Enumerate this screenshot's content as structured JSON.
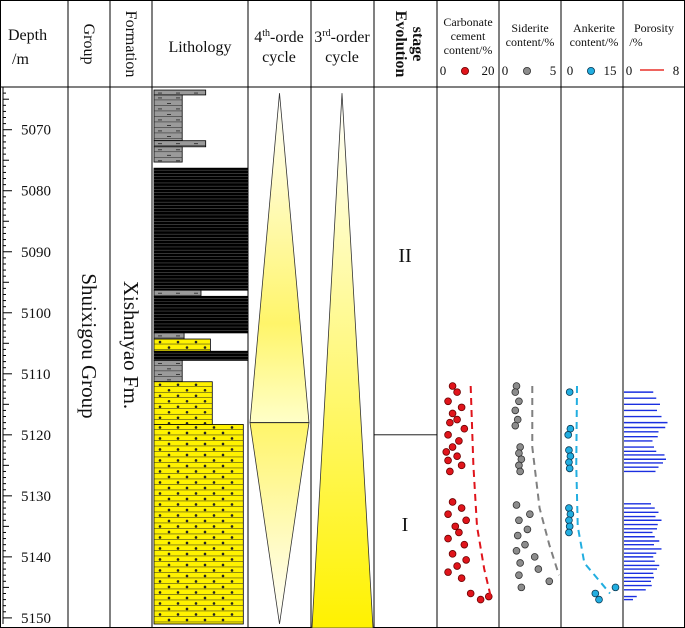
{
  "headers": {
    "depth": [
      "Depth",
      "/m"
    ],
    "group": "Group",
    "formation": "Formation",
    "lithology": "Lithology",
    "cycle4": {
      "sup": "th",
      "line1": "4",
      "line1b": "-orde",
      "line2": "cycle"
    },
    "cycle3": {
      "sup": "rd",
      "line1": "3",
      "line1b": "-order",
      "line2": "cycle"
    },
    "evolution": [
      "Evolution",
      "stage"
    ],
    "carbonate": [
      "Carbonate",
      "cement",
      "content/%"
    ],
    "siderite": [
      "Siderite",
      "content/%"
    ],
    "ankerite": [
      "Ankerite",
      "content/%"
    ],
    "porosity": [
      "Porosity",
      "/%"
    ]
  },
  "scales": {
    "carbonate": {
      "min": "0",
      "max": "20",
      "color": "#e0141b"
    },
    "siderite": {
      "min": "0",
      "max": "5",
      "color": "#8c8c8c"
    },
    "ankerite": {
      "min": "0",
      "max": "15",
      "color": "#22aee0"
    },
    "porosity": {
      "min": "0",
      "max": "8",
      "color": "#e8302a"
    }
  },
  "group_name": "Shuixigou Group",
  "formation_name": "Xishanyao Fm.",
  "stages": {
    "upper": "II",
    "lower": "I",
    "boundary_depth": 5120
  },
  "depth_ticks": [
    5070,
    5080,
    5090,
    5100,
    5110,
    5120,
    5130,
    5140,
    5150
  ],
  "colors": {
    "sandstone": "#fff200",
    "mudstone": "#000000",
    "siltstone": "#9a9a9a",
    "porosity_bar": "#1a2fe0",
    "cycle_fill": "#fffb7a"
  },
  "chart_data": {
    "type": "well-log",
    "depth_range": [
      5063,
      5151
    ],
    "lithology": [
      {
        "top": 5063.5,
        "bottom": 5064.3,
        "rock": "siltstone",
        "width": 0.55
      },
      {
        "top": 5064.3,
        "bottom": 5071.8,
        "rock": "siltstone",
        "width": 0.3
      },
      {
        "top": 5071.8,
        "bottom": 5072.8,
        "rock": "siltstone",
        "width": 0.55
      },
      {
        "top": 5072.8,
        "bottom": 5075.3,
        "rock": "siltstone",
        "width": 0.3
      },
      {
        "top": 5076.3,
        "bottom": 5096.3,
        "rock": "mudstone",
        "width": 1.0
      },
      {
        "top": 5096.3,
        "bottom": 5097.3,
        "rock": "siltstone",
        "width": 0.5
      },
      {
        "top": 5097.3,
        "bottom": 5103.3,
        "rock": "mudstone",
        "width": 1.0
      },
      {
        "top": 5103.3,
        "bottom": 5104.3,
        "rock": "siltstone",
        "width": 0.32
      },
      {
        "top": 5104.3,
        "bottom": 5106.3,
        "rock": "sandstone",
        "width": 0.6
      },
      {
        "top": 5106.3,
        "bottom": 5107.8,
        "rock": "mudstone",
        "width": 1.0
      },
      {
        "top": 5107.8,
        "bottom": 5111.3,
        "rock": "siltstone",
        "width": 0.3
      },
      {
        "top": 5111.3,
        "bottom": 5118.3,
        "rock": "sandstone",
        "width": 0.62
      },
      {
        "top": 5118.3,
        "bottom": 5151.0,
        "rock": "sandstone",
        "width": 0.95
      }
    ],
    "cycle4_pinch_depths": [
      5064,
      5118,
      5151
    ],
    "cycle3_pinch_depths": [
      5064
    ],
    "carbonate": [
      [
        5112,
        1.5
      ],
      [
        5113,
        2
      ],
      [
        5114.5,
        1
      ],
      [
        5115.5,
        2.5
      ],
      [
        5116.5,
        1.5
      ],
      [
        5117.5,
        2
      ],
      [
        5118,
        1.2
      ],
      [
        5119,
        2.8
      ],
      [
        5120,
        1
      ],
      [
        5121,
        2.2
      ],
      [
        5122,
        1.5
      ],
      [
        5122.8,
        0.8
      ],
      [
        5123.5,
        2
      ],
      [
        5124.2,
        1
      ],
      [
        5125,
        2.5
      ],
      [
        5126,
        1.2
      ],
      [
        5131,
        1.5
      ],
      [
        5132,
        2.5
      ],
      [
        5133,
        1
      ],
      [
        5134,
        3
      ],
      [
        5135,
        1.8
      ],
      [
        5136,
        2.2
      ],
      [
        5137,
        1
      ],
      [
        5138,
        2.8
      ],
      [
        5139.5,
        1.5
      ],
      [
        5140.5,
        3
      ],
      [
        5141.5,
        2
      ],
      [
        5142.5,
        1
      ],
      [
        5143.5,
        2.5
      ],
      [
        5146,
        3.5
      ],
      [
        5147,
        4.6
      ],
      [
        5146.5,
        5.5
      ]
    ],
    "carbonate_trend": [
      [
        5112,
        3.5
      ],
      [
        5125,
        3.8
      ],
      [
        5135,
        4.2
      ],
      [
        5142,
        5
      ],
      [
        5147,
        5.8
      ]
    ],
    "siderite": [
      [
        5112,
        0.7
      ],
      [
        5113,
        0.6
      ],
      [
        5114.5,
        0.9
      ],
      [
        5116,
        0.6
      ],
      [
        5117.5,
        0.8
      ],
      [
        5118.5,
        0.6
      ],
      [
        5122,
        1
      ],
      [
        5123,
        0.9
      ],
      [
        5124,
        1.1
      ],
      [
        5125,
        0.9
      ],
      [
        5126,
        1
      ],
      [
        5131.5,
        0.7
      ],
      [
        5133,
        1.8
      ],
      [
        5134,
        0.9
      ],
      [
        5135.5,
        1.6
      ],
      [
        5136.5,
        0.8
      ],
      [
        5138,
        1.4
      ],
      [
        5139,
        0.7
      ],
      [
        5140,
        2.2
      ],
      [
        5141,
        1
      ],
      [
        5142,
        2.5
      ],
      [
        5143,
        0.9
      ],
      [
        5144,
        3.4
      ],
      [
        5145,
        1.1
      ]
    ],
    "siderite_trend": [
      [
        5112,
        2.0
      ],
      [
        5122,
        2.0
      ],
      [
        5132,
        2.6
      ],
      [
        5138,
        3.4
      ],
      [
        5143,
        4.2
      ]
    ],
    "ankerite": [
      [
        5113,
        1
      ],
      [
        5119,
        1.2
      ],
      [
        5120,
        0.6
      ],
      [
        5122.5,
        0.8
      ],
      [
        5123.5,
        1.2
      ],
      [
        5124.5,
        0.8
      ],
      [
        5125.5,
        1
      ],
      [
        5132,
        0.8
      ],
      [
        5133,
        1.2
      ],
      [
        5134,
        0.8
      ],
      [
        5135,
        1
      ],
      [
        5136,
        0.8
      ],
      [
        5146,
        8
      ],
      [
        5147,
        9
      ],
      [
        5145,
        13.5
      ]
    ],
    "ankerite_trend": [
      [
        5112,
        3
      ],
      [
        5125,
        2.8
      ],
      [
        5135,
        3.2
      ],
      [
        5141,
        5
      ],
      [
        5146,
        12
      ]
    ],
    "porosity": [
      [
        5113,
        3.9
      ],
      [
        5114,
        4.3
      ],
      [
        5115,
        4.8
      ],
      [
        5116,
        4.4
      ],
      [
        5117,
        5.0
      ],
      [
        5118,
        5.8
      ],
      [
        5118.8,
        5.5
      ],
      [
        5119.5,
        4.6
      ],
      [
        5120.3,
        4.5
      ],
      [
        5121,
        3.8
      ],
      [
        5122,
        4.0
      ],
      [
        5122.7,
        4.3
      ],
      [
        5123.3,
        5.4
      ],
      [
        5124,
        5.6
      ],
      [
        5124.6,
        5.2
      ],
      [
        5125.3,
        4.6
      ],
      [
        5126,
        4.2
      ],
      [
        5131.3,
        3.6
      ],
      [
        5132,
        4.1
      ],
      [
        5132.7,
        4.6
      ],
      [
        5133.4,
        4.2
      ],
      [
        5134,
        5.0
      ],
      [
        5134.7,
        4.5
      ],
      [
        5135.4,
        4.4
      ],
      [
        5136,
        3.8
      ],
      [
        5136.7,
        4.1
      ],
      [
        5137.4,
        4.7
      ],
      [
        5138,
        4.0
      ],
      [
        5138.7,
        5.0
      ],
      [
        5139.4,
        4.3
      ],
      [
        5140,
        3.9
      ],
      [
        5140.7,
        4.1
      ],
      [
        5141.4,
        4.7
      ],
      [
        5142,
        4.4
      ],
      [
        5142.7,
        3.9
      ],
      [
        5143.4,
        4.0
      ],
      [
        5144,
        3.6
      ],
      [
        5144.7,
        3.7
      ],
      [
        5145.4,
        2.9
      ],
      [
        5146.5,
        1.7
      ],
      [
        5147,
        1.2
      ]
    ]
  }
}
